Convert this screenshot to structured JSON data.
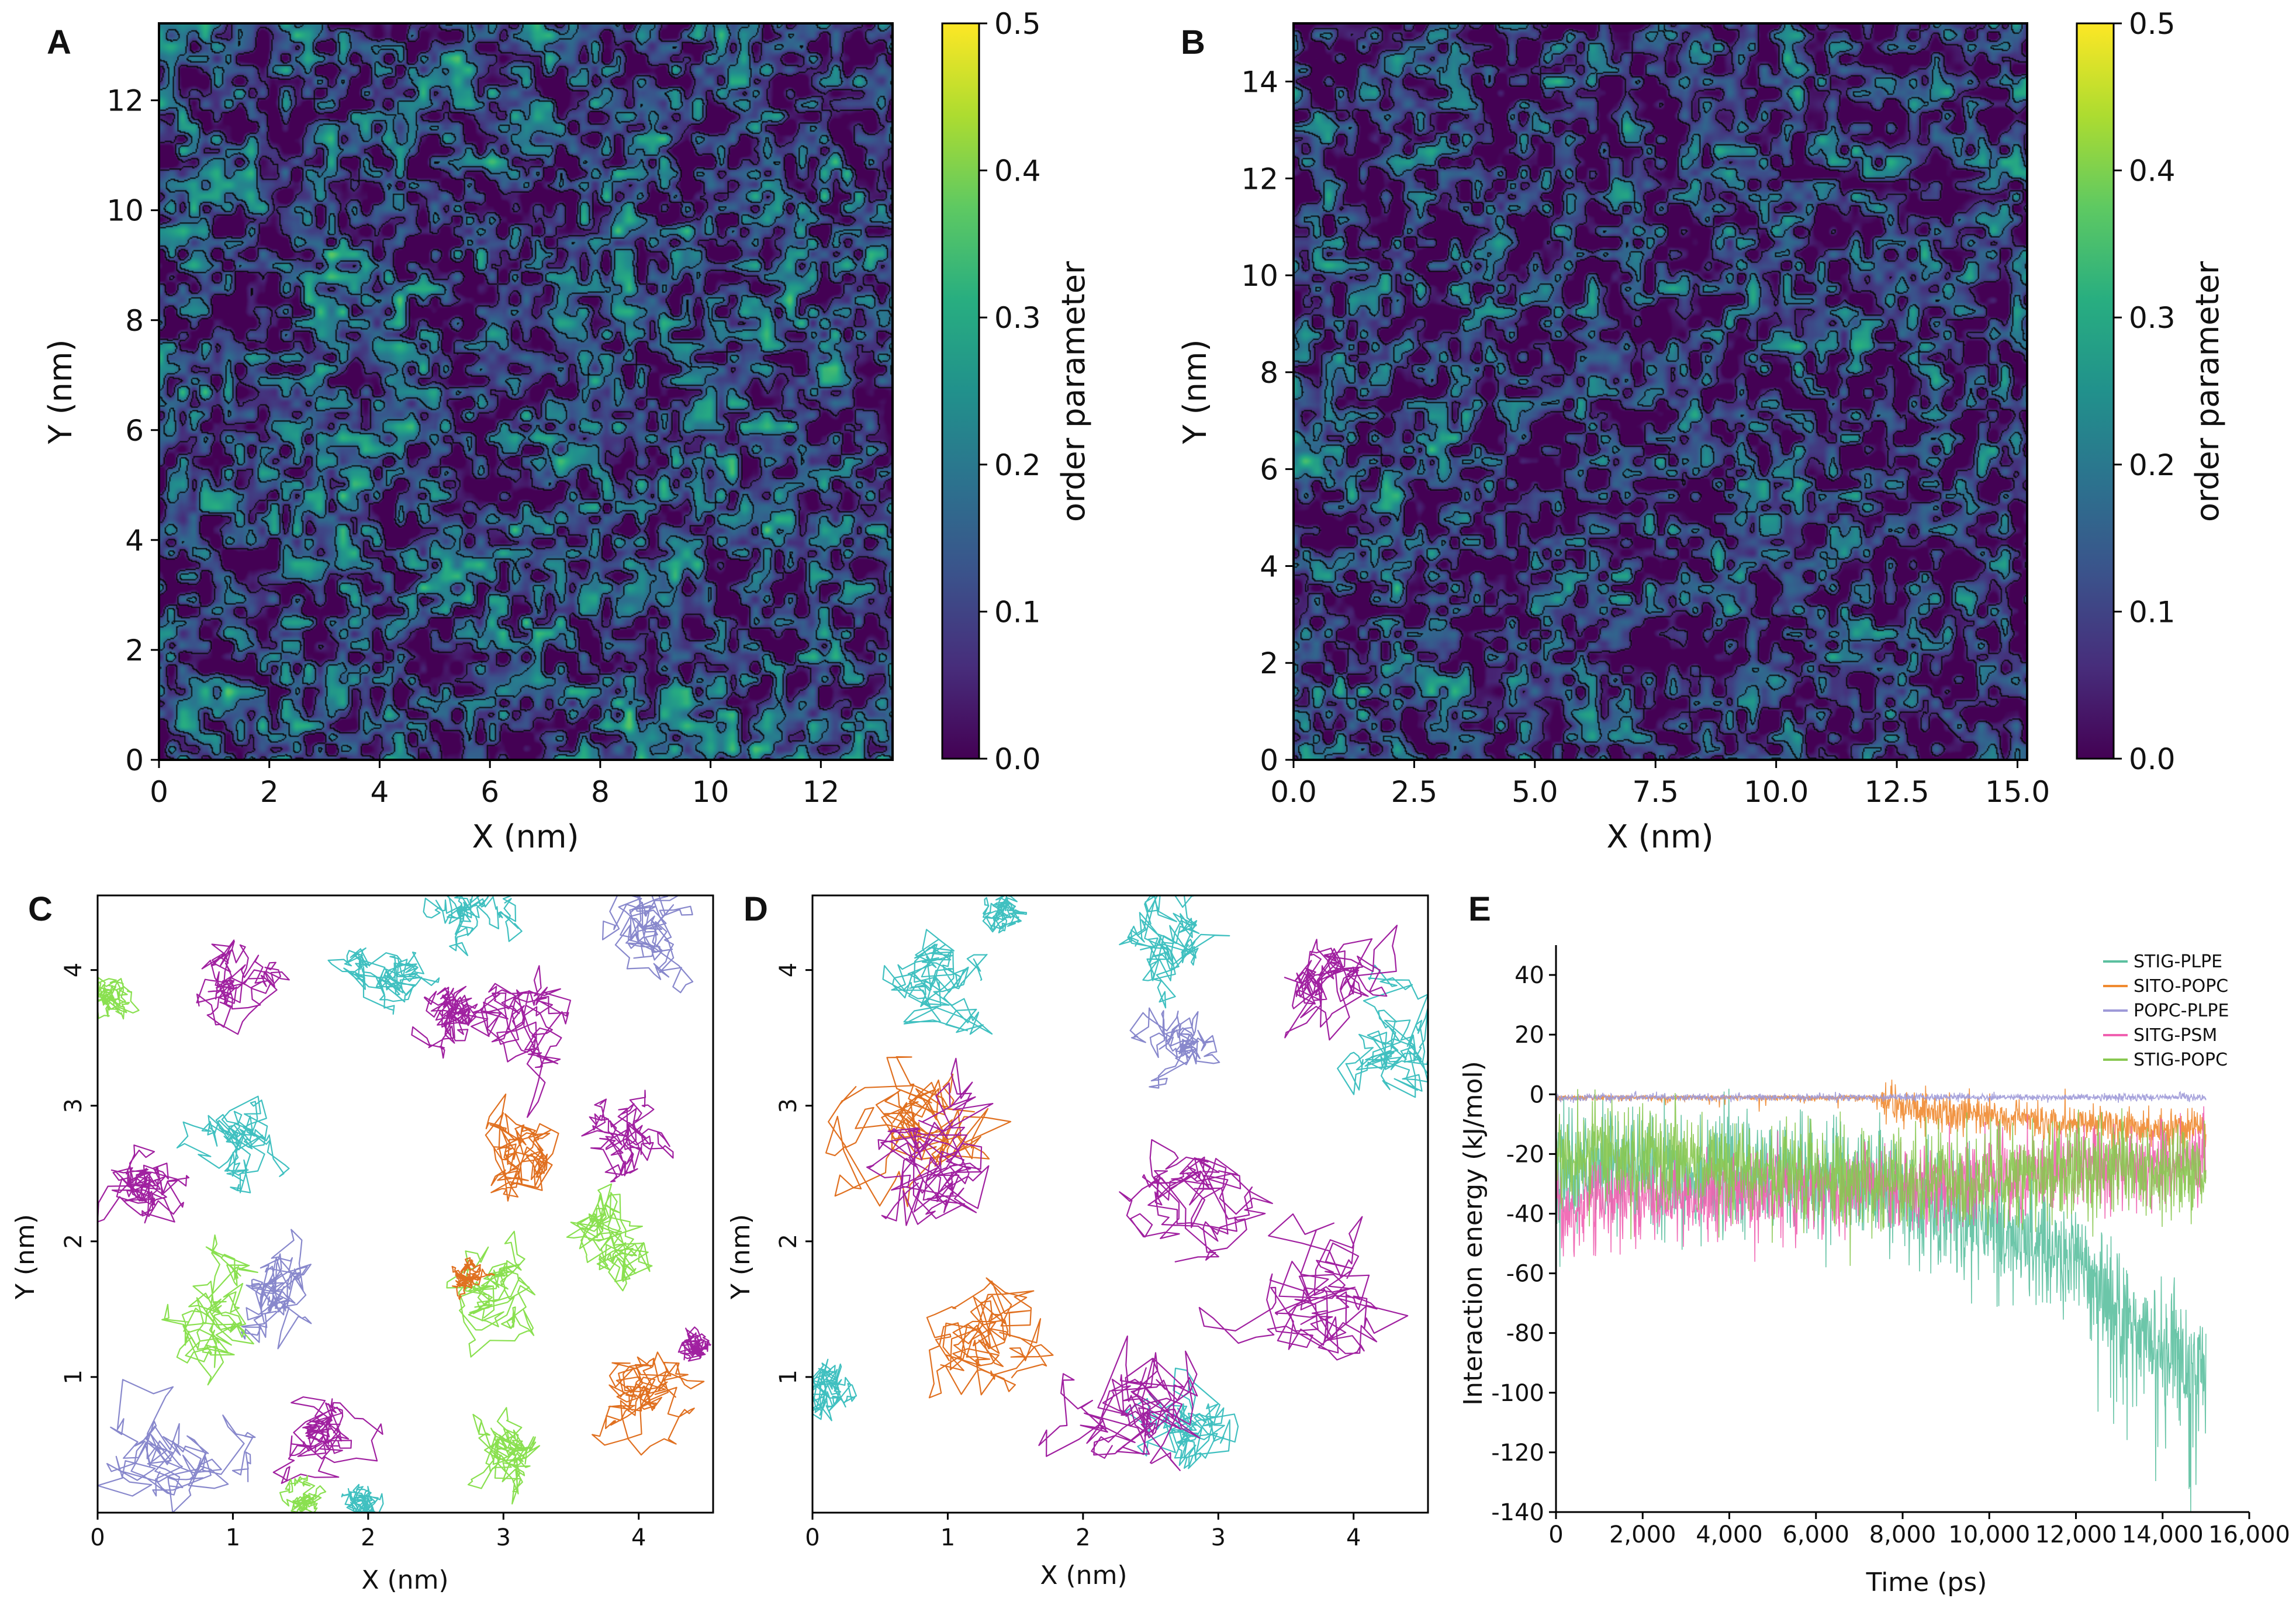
{
  "panel_labels": [
    "A",
    "B",
    "C",
    "D",
    "E"
  ],
  "chart_data": [
    {
      "panel": "A",
      "type": "heatmap",
      "xlabel": "X (nm)",
      "ylabel": "Y (nm)",
      "xlim": [
        0,
        13.3
      ],
      "ylim": [
        0,
        13.4
      ],
      "xticks": [
        "0",
        "2",
        "4",
        "6",
        "8",
        "10",
        "12"
      ],
      "yticks": [
        "0",
        "2",
        "4",
        "6",
        "8",
        "10",
        "12"
      ],
      "colorbar": {
        "label": "order parameter",
        "range": [
          0.0,
          0.5
        ],
        "ticks": [
          "0.0",
          "0.1",
          "0.2",
          "0.3",
          "0.4",
          "0.5"
        ],
        "colormap": "viridis"
      },
      "contours": true,
      "seed": 11,
      "base": 0.11
    },
    {
      "panel": "B",
      "type": "heatmap",
      "xlabel": "X (nm)",
      "ylabel": "Y (nm)",
      "xlim": [
        0,
        15.2
      ],
      "ylim": [
        0,
        15.2
      ],
      "xticks": [
        "0.0",
        "2.5",
        "5.0",
        "7.5",
        "10.0",
        "12.5",
        "15.0"
      ],
      "yticks": [
        "0",
        "2",
        "4",
        "6",
        "8",
        "10",
        "12",
        "14"
      ],
      "colorbar": {
        "label": "order parameter",
        "range": [
          0.0,
          0.5
        ],
        "ticks": [
          "0.0",
          "0.1",
          "0.2",
          "0.3",
          "0.4",
          "0.5"
        ],
        "colormap": "viridis"
      },
      "contours": true,
      "seed": 29,
      "base": 0.08
    },
    {
      "panel": "C",
      "type": "line",
      "xlabel": "X (nm)",
      "ylabel": "Y (nm)",
      "xlim": [
        0,
        4.55
      ],
      "ylim": [
        0,
        4.55
      ],
      "xticks": [
        "0",
        "1",
        "2",
        "3",
        "4"
      ],
      "yticks": [
        "1",
        "2",
        "3",
        "4"
      ],
      "seed": 5,
      "trajectories": [
        {
          "color": "#a020a0",
          "x": 1.0,
          "y": 4.0,
          "r": 0.25
        },
        {
          "color": "#a020a0",
          "x": 0.3,
          "y": 2.4,
          "r": 0.25
        },
        {
          "color": "#a020a0",
          "x": 2.6,
          "y": 3.7,
          "r": 0.2
        },
        {
          "color": "#a020a0",
          "x": 3.2,
          "y": 3.5,
          "r": 0.35
        },
        {
          "color": "#a020a0",
          "x": 3.9,
          "y": 2.8,
          "r": 0.25
        },
        {
          "color": "#a020a0",
          "x": 1.7,
          "y": 0.5,
          "r": 0.25
        },
        {
          "color": "#a020a0",
          "x": 4.4,
          "y": 1.2,
          "r": 0.12
        },
        {
          "color": "#40c0c0",
          "x": 2.05,
          "y": 3.9,
          "r": 0.25
        },
        {
          "color": "#40c0c0",
          "x": 1.1,
          "y": 2.7,
          "r": 0.3
        },
        {
          "color": "#40c0c0",
          "x": 2.75,
          "y": 4.45,
          "r": 0.2
        },
        {
          "color": "#40c0c0",
          "x": 1.9,
          "y": 0.05,
          "r": 0.15
        },
        {
          "color": "#8888cc",
          "x": 4.1,
          "y": 4.35,
          "r": 0.3
        },
        {
          "color": "#8888cc",
          "x": 1.4,
          "y": 1.6,
          "r": 0.3
        },
        {
          "color": "#8888cc",
          "x": 0.45,
          "y": 0.35,
          "r": 0.35
        },
        {
          "color": "#8ae050",
          "x": 0.1,
          "y": 3.8,
          "r": 0.15
        },
        {
          "color": "#8ae050",
          "x": 0.85,
          "y": 1.55,
          "r": 0.3
        },
        {
          "color": "#8ae050",
          "x": 2.85,
          "y": 1.6,
          "r": 0.3
        },
        {
          "color": "#8ae050",
          "x": 3.8,
          "y": 1.95,
          "r": 0.3
        },
        {
          "color": "#8ae050",
          "x": 3.05,
          "y": 0.35,
          "r": 0.25
        },
        {
          "color": "#8ae050",
          "x": 1.5,
          "y": 0.05,
          "r": 0.12
        },
        {
          "color": "#e07020",
          "x": 3.1,
          "y": 2.7,
          "r": 0.3
        },
        {
          "color": "#e07020",
          "x": 4.0,
          "y": 0.8,
          "r": 0.3
        },
        {
          "color": "#e07020",
          "x": 2.75,
          "y": 1.7,
          "r": 0.1
        }
      ]
    },
    {
      "panel": "D",
      "type": "line",
      "xlabel": "X (nm)",
      "ylabel": "Y (nm)",
      "xlim": [
        0,
        4.55
      ],
      "ylim": [
        0,
        4.55
      ],
      "xticks": [
        "0",
        "1",
        "2",
        "3",
        "4"
      ],
      "yticks": [
        "1",
        "2",
        "3",
        "4"
      ],
      "seed": 17,
      "trajectories": [
        {
          "color": "#40c0c0",
          "x": 0.9,
          "y": 3.85,
          "r": 0.4
        },
        {
          "color": "#40c0c0",
          "x": 1.4,
          "y": 4.45,
          "r": 0.12
        },
        {
          "color": "#40c0c0",
          "x": 2.55,
          "y": 4.2,
          "r": 0.3
        },
        {
          "color": "#40c0c0",
          "x": 4.2,
          "y": 3.5,
          "r": 0.35
        },
        {
          "color": "#40c0c0",
          "x": 0.05,
          "y": 0.9,
          "r": 0.2
        },
        {
          "color": "#40c0c0",
          "x": 2.7,
          "y": 0.5,
          "r": 0.3
        },
        {
          "color": "#8888cc",
          "x": 2.75,
          "y": 3.4,
          "r": 0.2
        },
        {
          "color": "#e07020",
          "x": 0.8,
          "y": 2.9,
          "r": 0.5
        },
        {
          "color": "#e07020",
          "x": 1.3,
          "y": 1.3,
          "r": 0.4
        },
        {
          "color": "#a020a0",
          "x": 0.8,
          "y": 2.5,
          "r": 0.5
        },
        {
          "color": "#a020a0",
          "x": 3.9,
          "y": 3.8,
          "r": 0.35
        },
        {
          "color": "#a020a0",
          "x": 2.9,
          "y": 2.3,
          "r": 0.4
        },
        {
          "color": "#a020a0",
          "x": 3.6,
          "y": 1.4,
          "r": 0.45
        },
        {
          "color": "#a020a0",
          "x": 2.3,
          "y": 0.7,
          "r": 0.5
        }
      ]
    },
    {
      "panel": "E",
      "type": "line",
      "xlabel": "Time (ps)",
      "ylabel": "Interaction energy (kJ/mol)",
      "xlim": [
        0,
        16000
      ],
      "ylim": [
        -140,
        50
      ],
      "xticks": [
        0,
        2000,
        4000,
        6000,
        8000,
        10000,
        12000,
        14000,
        16000
      ],
      "xtick_labels": [
        "0",
        "2,000",
        "4,000",
        "6,000",
        "8,000",
        "10,000",
        "12,000",
        "14,000",
        "16,000"
      ],
      "yticks": [
        -140,
        -120,
        -100,
        -80,
        -60,
        -40,
        -20,
        0,
        20,
        40
      ],
      "legend": "top-right",
      "seed": 42,
      "series": [
        {
          "name": "STIG-PLPE",
          "color": "#5cc0a0",
          "points": [
            [
              0,
              -25
            ],
            [
              2000,
              -26
            ],
            [
              4000,
              -27
            ],
            [
              6000,
              -28
            ],
            [
              8000,
              -35
            ],
            [
              10000,
              -45
            ],
            [
              12000,
              -55
            ],
            [
              13000,
              -70
            ],
            [
              14000,
              -85
            ],
            [
              15000,
              -95
            ]
          ],
          "noise": 10
        },
        {
          "name": "SITO-POPC",
          "color": "#f08a30",
          "points": [
            [
              0,
              -1
            ],
            [
              7500,
              -1
            ],
            [
              8000,
              -5
            ],
            [
              10000,
              -7
            ],
            [
              12000,
              -10
            ],
            [
              15000,
              -12
            ]
          ],
          "noise": 3
        },
        {
          "name": "POPC-PLPE",
          "color": "#9e9ad8",
          "points": [
            [
              0,
              -1
            ],
            [
              15000,
              -1
            ]
          ],
          "noise": 0.6
        },
        {
          "name": "SITG-PSM",
          "color": "#f060b0",
          "points": [
            [
              0,
              -38
            ],
            [
              3000,
              -34
            ],
            [
              6000,
              -32
            ],
            [
              9000,
              -30
            ],
            [
              12000,
              -25
            ],
            [
              15000,
              -22
            ]
          ],
          "noise": 7
        },
        {
          "name": "STIG-POPC",
          "color": "#88c850",
          "points": [
            [
              0,
              -22
            ],
            [
              2000,
              -20
            ],
            [
              4000,
              -24
            ],
            [
              6000,
              -28
            ],
            [
              8000,
              -28
            ],
            [
              10000,
              -28
            ],
            [
              12000,
              -25
            ],
            [
              15000,
              -25
            ]
          ],
          "noise": 8
        }
      ]
    }
  ]
}
